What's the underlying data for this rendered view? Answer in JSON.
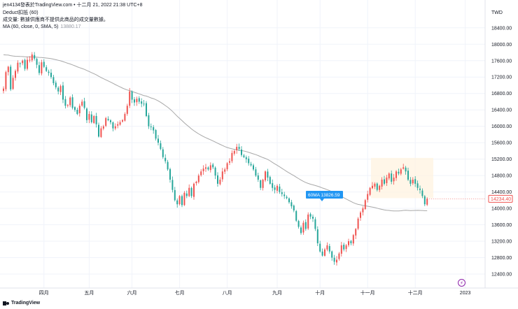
{
  "header": {
    "watermark": "jen4134發表於TradingView.com • 十二月 21, 2022 21:38 UTC+8",
    "study_deduct": "Deduct扣抵 (60)",
    "study_volume": "成交量: 數據供應商不提供此商品的成交量數據。",
    "study_ma": "MA (60, close, 0, SMA, 5)",
    "study_ma_value": "13880.17"
  },
  "footer": {
    "brand": "TradingView",
    "lightning_icon": "lightning-icon"
  },
  "chart_data": {
    "type": "candlestick",
    "currency": "TWD",
    "ylim": [
      12200,
      18700
    ],
    "y_ticks": [
      12400,
      12800,
      13200,
      13600,
      14000,
      14400,
      14800,
      15200,
      15600,
      16000,
      16400,
      16800,
      17200,
      17600,
      18000,
      18400
    ],
    "x_labels": [
      {
        "label": "四月",
        "bar": 17
      },
      {
        "label": "五月",
        "bar": 36
      },
      {
        "label": "六月",
        "bar": 54
      },
      {
        "label": "七月",
        "bar": 74
      },
      {
        "label": "八月",
        "bar": 94
      },
      {
        "label": "九月",
        "bar": 115
      },
      {
        "label": "十月",
        "bar": 133
      },
      {
        "label": "十一月",
        "bar": 153
      },
      {
        "label": "十二月",
        "bar": 173
      },
      {
        "label": "2023",
        "bar": 194
      }
    ],
    "up_color": "#ef5350",
    "down_color": "#26a69a",
    "ma_color": "#a8a8a8",
    "closes": [
      16920,
      17320,
      17450,
      16900,
      17180,
      17350,
      17550,
      17520,
      17600,
      17400,
      17620,
      17620,
      17750,
      17650,
      17500,
      17300,
      17560,
      17450,
      17350,
      17300,
      17200,
      17050,
      16950,
      16850,
      16980,
      16650,
      16500,
      16520,
      16700,
      16450,
      16400,
      16300,
      16500,
      16600,
      16450,
      16150,
      16300,
      16100,
      16250,
      16050,
      15750,
      15950,
      16000,
      16200,
      16150,
      16100,
      15950,
      16000,
      16050,
      16100,
      16150,
      16300,
      16500,
      16850,
      16650,
      16580,
      16670,
      16600,
      16550,
      16550,
      16250,
      16000,
      15980,
      15900,
      15700,
      15600,
      15450,
      15250,
      15150,
      14950,
      14700,
      14450,
      14200,
      14100,
      14300,
      14080,
      14380,
      14300,
      14500,
      14300,
      14600,
      14650,
      14800,
      14900,
      14970,
      15000,
      14950,
      15050,
      15000,
      14800,
      14600,
      14700,
      14900,
      14950,
      15100,
      15150,
      15350,
      15400,
      15500,
      15450,
      15300,
      15250,
      15200,
      15100,
      15050,
      14950,
      14800,
      14700,
      14500,
      14700,
      14900,
      14750,
      14600,
      14500,
      14450,
      14550,
      14400,
      14350,
      14300,
      14250,
      14150,
      14050,
      13950,
      13700,
      13550,
      13400,
      13650,
      13500,
      13850,
      13800,
      13750,
      13500,
      13150,
      12950,
      12850,
      13000,
      13100,
      12950,
      12800,
      12700,
      12750,
      12900,
      13100,
      13000,
      13100,
      13200,
      13150,
      13350,
      13500,
      13750,
      13900,
      14000,
      14200,
      14350,
      14500,
      14550,
      14600,
      14450,
      14550,
      14700,
      14600,
      14750,
      14850,
      14650,
      14750,
      14900,
      14850,
      14950,
      15000,
      14900,
      14700,
      14600,
      14700,
      14600,
      14500,
      14450,
      14300,
      14100,
      14234.4
    ],
    "price_label": "14234.40",
    "ma60_label": "60MA 13826.59",
    "highlight_box": {
      "from_bar": 155,
      "to_bar": 180,
      "y_top": 15230,
      "y_bottom": 14250
    }
  }
}
